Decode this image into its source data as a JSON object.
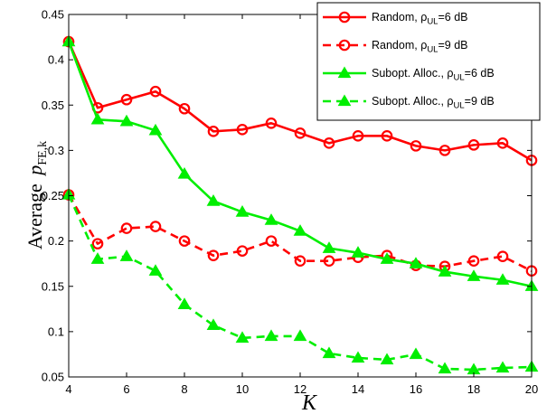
{
  "chart_data": {
    "type": "line",
    "xlabel": "K",
    "ylabel_prefix": "Average",
    "ylabel_symbol": "p",
    "ylabel_subscript": "FE,k",
    "xlim": [
      4,
      20
    ],
    "ylim": [
      0.05,
      0.45
    ],
    "xticks": [
      4,
      6,
      8,
      10,
      12,
      14,
      16,
      18,
      20
    ],
    "yticks": [
      0.05,
      0.1,
      0.15,
      0.2,
      0.25,
      0.3,
      0.35,
      0.4,
      0.45
    ],
    "grid": "off",
    "legend_position": "top-right",
    "x": [
      4,
      5,
      6,
      7,
      8,
      9,
      10,
      11,
      12,
      13,
      14,
      15,
      16,
      17,
      18,
      19,
      20
    ],
    "series": [
      {
        "name": "Random, ρUL=6 dB",
        "legend": {
          "pre": "Random, ρ",
          "sub": "UL",
          "post": "=6 dB"
        },
        "color": "#ff0000",
        "dash": "solid",
        "marker": "circle",
        "values": [
          0.42,
          0.347,
          0.356,
          0.365,
          0.346,
          0.321,
          0.323,
          0.33,
          0.319,
          0.308,
          0.316,
          0.316,
          0.305,
          0.3,
          0.306,
          0.308,
          0.289
        ]
      },
      {
        "name": "Random, ρUL=9 dB",
        "legend": {
          "pre": "Random, ρ",
          "sub": "UL",
          "post": "=9 dB"
        },
        "color": "#ff0000",
        "dash": "dashed",
        "marker": "circle",
        "values": [
          0.251,
          0.197,
          0.214,
          0.216,
          0.2,
          0.184,
          0.189,
          0.2,
          0.178,
          0.178,
          0.182,
          0.184,
          0.173,
          0.172,
          0.178,
          0.183,
          0.167
        ]
      },
      {
        "name": "Subopt. Alloc., ρUL=6 dB",
        "legend": {
          "pre": "Subopt. Alloc., ρ",
          "sub": "UL",
          "post": "=6 dB"
        },
        "color": "#00ee00",
        "dash": "solid",
        "marker": "triangle",
        "values": [
          0.42,
          0.334,
          0.332,
          0.322,
          0.274,
          0.244,
          0.232,
          0.223,
          0.211,
          0.192,
          0.187,
          0.18,
          0.175,
          0.166,
          0.161,
          0.157,
          0.15
        ]
      },
      {
        "name": "Subopt. Alloc., ρUL=9 dB",
        "legend": {
          "pre": "Subopt. Alloc., ρ",
          "sub": "UL",
          "post": "=9 dB"
        },
        "color": "#00ee00",
        "dash": "dashed",
        "marker": "triangle",
        "values": [
          0.251,
          0.18,
          0.183,
          0.167,
          0.13,
          0.107,
          0.093,
          0.095,
          0.095,
          0.076,
          0.071,
          0.069,
          0.075,
          0.059,
          0.058,
          0.06,
          0.061
        ]
      }
    ]
  }
}
